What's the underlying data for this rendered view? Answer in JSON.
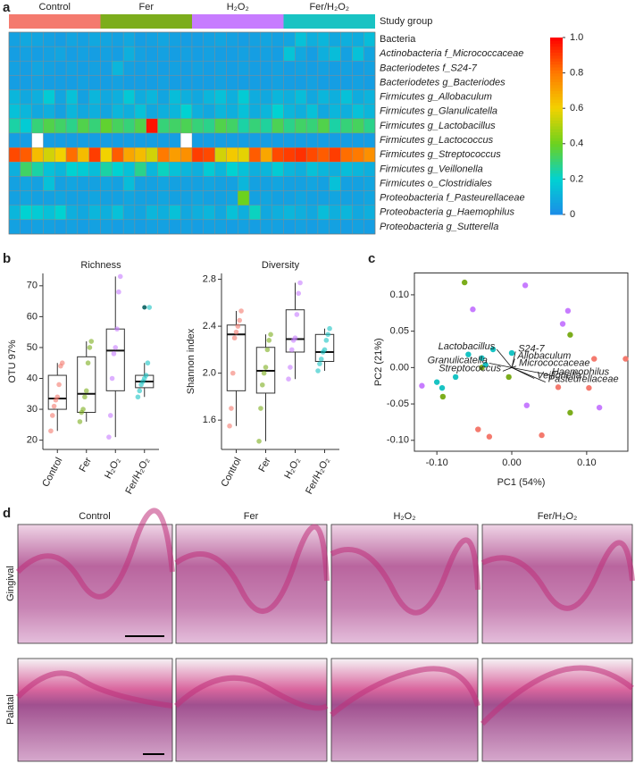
{
  "panel_labels": [
    "a",
    "b",
    "c",
    "d"
  ],
  "chart_data": [
    {
      "type": "heatmap",
      "group_label": "Study group",
      "groups": {
        "names": [
          "Control",
          "Fer",
          "H₂O₂",
          "Fer/H₂O₂"
        ],
        "colors": [
          "#f47a6e",
          "#7cad1c",
          "#c77cff",
          "#19c3c3"
        ]
      },
      "rows": [
        "Bacteria",
        "Actinobacteria f_Micrococcaceae",
        "Bacteriodetes f_S24-7",
        "Bacteriodetes g_Bacteriodes",
        "Firmicutes g_Allobaculum",
        "Firmicutes g_Glanulicatella",
        "Firmicutes g_Lactobacillus",
        "Firmicutes g_Lactococcus",
        "Firmicutes g_Streptococcus",
        "Firmicutes g_Veillonella",
        "Firmicutes o_Clostridiales",
        "Proteobacteria f_Pasteurellaceae",
        "Proteobacteria g_Haemophilus",
        "Proteobacteria g_Sutterella"
      ],
      "values": [
        [
          0.06,
          0.08,
          0.07,
          0.06,
          0.05,
          0.07,
          0.06,
          0.08,
          0.07,
          0.06,
          0.08,
          0.05,
          0.06,
          0.07,
          0.06,
          0.05,
          0.05,
          0.06,
          0.07,
          0.06,
          0.05,
          0.06,
          0.07,
          0.06,
          0.07,
          0.15,
          0.1,
          0.12,
          0.08,
          0.1,
          0.09,
          0.14
        ],
        [
          0.05,
          0.06,
          0.05,
          0.06,
          0.07,
          0.05,
          0.06,
          0.05,
          0.06,
          0.05,
          0.1,
          0.06,
          0.05,
          0.06,
          0.05,
          0.06,
          0.05,
          0.06,
          0.05,
          0.05,
          0.06,
          0.05,
          0.06,
          0.05,
          0.16,
          0.08,
          0.05,
          0.1,
          0.14,
          0.06,
          0.15,
          0.07
        ],
        [
          0.06,
          0.05,
          0.07,
          0.06,
          0.05,
          0.06,
          0.05,
          0.06,
          0.05,
          0.12,
          0.06,
          0.05,
          0.06,
          0.05,
          0.06,
          0.05,
          0.06,
          0.05,
          0.06,
          0.05,
          0.06,
          0.05,
          0.05,
          0.06,
          0.05,
          0.06,
          0.05,
          0.06,
          0.05,
          0.06,
          0.05,
          0.06
        ],
        [
          0.05,
          0.05,
          0.06,
          0.05,
          0.05,
          0.05,
          0.06,
          0.05,
          0.05,
          0.06,
          0.05,
          0.05,
          0.05,
          0.06,
          0.05,
          0.05,
          0.05,
          0.05,
          0.06,
          0.05,
          0.05,
          0.05,
          0.05,
          0.06,
          0.05,
          0.05,
          0.06,
          0.05,
          0.05,
          0.05,
          0.06,
          0.05
        ],
        [
          0.12,
          0.08,
          0.1,
          0.18,
          0.07,
          0.15,
          0.06,
          0.12,
          0.08,
          0.1,
          0.17,
          0.09,
          0.12,
          0.07,
          0.14,
          0.1,
          0.08,
          0.12,
          0.15,
          0.1,
          0.18,
          0.09,
          0.08,
          0.12,
          0.1,
          0.14,
          0.08,
          0.12,
          0.1,
          0.15,
          0.09,
          0.11
        ],
        [
          0.15,
          0.12,
          0.08,
          0.1,
          0.06,
          0.12,
          0.08,
          0.1,
          0.07,
          0.12,
          0.1,
          0.15,
          0.08,
          0.1,
          0.12,
          0.2,
          0.1,
          0.08,
          0.12,
          0.1,
          0.15,
          0.09,
          0.12,
          0.2,
          0.12,
          0.1,
          0.15,
          0.08,
          0.12,
          0.1,
          0.15,
          0.12
        ],
        [
          0.25,
          0.18,
          0.3,
          0.35,
          0.32,
          0.28,
          0.35,
          0.3,
          0.38,
          0.33,
          0.3,
          0.35,
          0.97,
          0.3,
          0.32,
          0.34,
          0.3,
          0.28,
          0.35,
          0.32,
          0.25,
          0.3,
          0.26,
          0.34,
          0.28,
          0.32,
          0.3,
          0.35,
          0.25,
          0.3,
          0.33,
          0.28
        ],
        [
          0.05,
          0.05,
          null,
          0.05,
          0.05,
          0.05,
          0.05,
          0.05,
          0.05,
          0.05,
          0.05,
          0.05,
          0.05,
          0.05,
          0.05,
          null,
          0.05,
          0.05,
          0.05,
          0.05,
          0.05,
          0.05,
          0.05,
          0.05,
          0.05,
          0.05,
          0.05,
          0.05,
          0.05,
          0.05,
          0.05,
          0.05
        ],
        [
          0.88,
          0.85,
          0.65,
          0.55,
          0.6,
          0.82,
          0.65,
          0.9,
          0.6,
          0.85,
          0.7,
          0.65,
          0.55,
          0.8,
          0.72,
          0.75,
          0.9,
          0.88,
          0.55,
          0.62,
          0.58,
          0.85,
          0.7,
          0.88,
          0.9,
          0.92,
          0.88,
          0.85,
          0.9,
          0.82,
          0.8,
          0.75
        ],
        [
          0.1,
          0.32,
          0.25,
          0.15,
          0.12,
          0.2,
          0.18,
          0.14,
          0.25,
          0.2,
          0.15,
          0.28,
          0.12,
          0.22,
          0.15,
          0.12,
          0.1,
          0.18,
          0.12,
          0.2,
          0.15,
          0.1,
          0.12,
          0.18,
          0.12,
          0.1,
          0.15,
          0.12,
          0.1,
          0.14,
          0.12,
          0.1
        ],
        [
          0.06,
          0.07,
          0.06,
          0.15,
          0.06,
          0.07,
          0.06,
          0.06,
          0.07,
          0.06,
          0.14,
          0.06,
          0.06,
          0.07,
          0.06,
          0.06,
          0.06,
          0.07,
          0.06,
          0.06,
          0.12,
          0.06,
          0.06,
          0.07,
          0.06,
          0.06,
          0.07,
          0.06,
          0.15,
          0.06,
          0.06,
          0.07
        ],
        [
          0.06,
          0.07,
          0.06,
          0.06,
          0.07,
          0.06,
          0.06,
          0.07,
          0.06,
          0.06,
          0.07,
          0.06,
          0.06,
          0.07,
          0.06,
          0.06,
          0.07,
          0.06,
          0.06,
          0.07,
          0.4,
          0.06,
          0.07,
          0.06,
          0.06,
          0.07,
          0.06,
          0.06,
          0.07,
          0.06,
          0.06,
          0.07
        ],
        [
          0.12,
          0.2,
          0.18,
          0.15,
          0.2,
          0.1,
          0.08,
          0.12,
          0.1,
          0.15,
          0.08,
          0.07,
          0.12,
          0.1,
          0.15,
          0.08,
          0.1,
          0.12,
          0.08,
          0.15,
          0.1,
          0.22,
          0.08,
          0.1,
          0.12,
          0.1,
          0.08,
          0.14,
          0.1,
          0.12,
          0.08,
          0.1
        ],
        [
          0.06,
          0.05,
          0.06,
          0.06,
          0.05,
          0.06,
          0.05,
          0.06,
          0.06,
          0.05,
          0.06,
          0.05,
          0.06,
          0.06,
          0.05,
          0.06,
          0.05,
          0.06,
          0.06,
          0.05,
          0.06,
          0.05,
          0.06,
          0.06,
          0.05,
          0.06,
          0.05,
          0.06,
          0.06,
          0.05,
          0.06,
          0.05
        ]
      ],
      "colorbar": {
        "lim": [
          0,
          1
        ],
        "ticks": [
          0,
          0.2,
          0.4,
          0.6,
          0.8,
          {
            "value": 1,
            "label": "1.0"
          }
        ],
        "colors": [
          "#1c8ce8",
          "#00d2d2",
          "#6cd21e",
          "#f2d200",
          "#ff7a00",
          "#ff0000"
        ]
      }
    },
    {
      "type": "box",
      "title": "Richness",
      "ylabel": "OTU 97%",
      "categories": [
        "Control",
        "Fer",
        "H₂O₂",
        "Fer/H₂O₂"
      ],
      "colors": [
        "#f47a6e",
        "#7cad1c",
        "#c77cff",
        "#19c3c3"
      ],
      "stats": [
        [
          23,
          30,
          33.5,
          41,
          45
        ],
        [
          26,
          29,
          35,
          47,
          52
        ],
        [
          21,
          36,
          49,
          56,
          73
        ],
        [
          34,
          37,
          39,
          41,
          45
        ]
      ],
      "points": [
        [
          23,
          28,
          31,
          33,
          34,
          38,
          44,
          45
        ],
        [
          26,
          29,
          30,
          34,
          36,
          45,
          50,
          52
        ],
        [
          21,
          28,
          40,
          48,
          50,
          56,
          68,
          73
        ],
        [
          34,
          36,
          38,
          39,
          40,
          41,
          45,
          63
        ]
      ],
      "outliers": [
        [],
        [],
        [],
        [
          63
        ]
      ],
      "ylim": [
        17,
        74
      ],
      "yticks": [
        20,
        30,
        40,
        50,
        60,
        70
      ]
    },
    {
      "type": "box",
      "title": "Diversity",
      "ylabel": "Shannon index",
      "categories": [
        "Control",
        "Fer",
        "H₂O₂",
        "Fer/H₂O₂"
      ],
      "colors": [
        "#f47a6e",
        "#7cad1c",
        "#c77cff",
        "#19c3c3"
      ],
      "stats": [
        [
          1.55,
          1.85,
          2.33,
          2.41,
          2.53
        ],
        [
          1.42,
          1.83,
          2.02,
          2.22,
          2.33
        ],
        [
          1.95,
          2.18,
          2.29,
          2.54,
          2.77
        ],
        [
          2.02,
          2.1,
          2.18,
          2.33,
          2.38
        ]
      ],
      "points": [
        [
          1.55,
          1.7,
          2.0,
          2.3,
          2.35,
          2.4,
          2.45,
          2.53
        ],
        [
          1.42,
          1.7,
          1.9,
          2.0,
          2.05,
          2.2,
          2.28,
          2.33
        ],
        [
          1.95,
          2.05,
          2.2,
          2.28,
          2.3,
          2.5,
          2.68,
          2.77
        ],
        [
          2.02,
          2.08,
          2.12,
          2.18,
          2.2,
          2.28,
          2.33,
          2.38
        ]
      ],
      "outliers": [
        [],
        [],
        [],
        []
      ],
      "ylim": [
        1.35,
        2.85
      ],
      "yticks": [
        1.6,
        {
          "value": 2,
          "label": "2.0"
        },
        2.4,
        2.8
      ]
    },
    {
      "type": "scatter",
      "xlabel": "PC1 (54%)",
      "ylabel": "PC2 (21%)",
      "series": [
        {
          "color": "#f47a6e",
          "x": [
            0.11,
            0.062,
            0.103,
            -0.03,
            -0.045,
            0.04,
            0.152
          ],
          "y": [
            0.012,
            -0.027,
            -0.028,
            -0.095,
            -0.085,
            -0.093,
            0.012
          ]
        },
        {
          "color": "#7cad1c",
          "x": [
            -0.063,
            -0.092,
            0.078,
            0.078,
            -0.004,
            -0.04
          ],
          "y": [
            0.117,
            -0.04,
            0.045,
            -0.062,
            -0.013,
            0.0
          ]
        },
        {
          "color": "#c77cff",
          "x": [
            0.018,
            0.075,
            0.068,
            -0.12,
            0.02,
            0.117,
            -0.052
          ],
          "y": [
            0.113,
            0.078,
            0.06,
            -0.025,
            -0.052,
            -0.055,
            0.08
          ]
        },
        {
          "color": "#19c3c3",
          "x": [
            -0.1,
            -0.093,
            -0.075,
            -0.058,
            -0.04,
            -0.025,
            0.0,
            -0.035
          ],
          "y": [
            -0.02,
            -0.028,
            -0.013,
            0.018,
            0.013,
            0.025,
            0.02,
            0.004
          ]
        }
      ],
      "loadings": {
        "names": [
          "Lactobacillus",
          "S24-7",
          "Allobaculum",
          "Granulicatella",
          "Micrococcaceae",
          "Haemophilus",
          "Streptococcus",
          "Veillonella",
          "Pasteurellaceae"
        ],
        "x": [
          -0.02,
          0.005,
          0.004,
          -0.03,
          0.006,
          0.05,
          -0.012,
          0.03,
          0.045
        ],
        "y": [
          0.025,
          0.022,
          0.012,
          0.006,
          0.002,
          -0.01,
          -0.005,
          -0.015,
          -0.02
        ]
      },
      "xlim": [
        -0.13,
        0.155
      ],
      "ylim": [
        -0.115,
        0.13
      ],
      "xticks": [
        {
          "value": -0.1,
          "label": "-0.10"
        },
        {
          "value": 0,
          "label": "0.00"
        },
        {
          "value": 0.1,
          "label": "0.10"
        }
      ],
      "yticks": [
        {
          "value": -0.1,
          "label": "-0.10"
        },
        {
          "value": -0.05,
          "label": "-0.05"
        },
        {
          "value": 0,
          "label": "0.00"
        },
        {
          "value": 0.05,
          "label": "0.05"
        },
        {
          "value": 0.1,
          "label": "0.10"
        }
      ]
    }
  ],
  "histology": {
    "columns": [
      "Control",
      "Fer",
      "H₂O₂",
      "Fer/H₂O₂"
    ],
    "rows": [
      "Gingival",
      "Palatal"
    ]
  }
}
